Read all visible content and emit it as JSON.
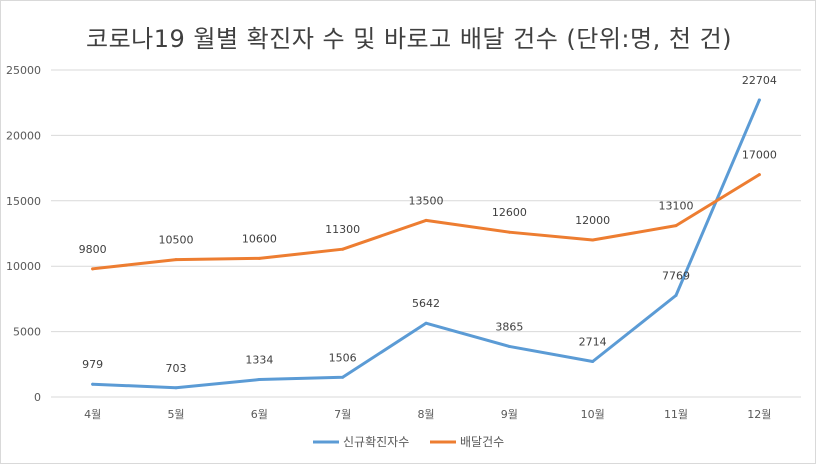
{
  "chart_data": {
    "type": "line",
    "title": "코로나19 월별 확진자 수 및 바로고 배달 건수 (단위:명, 천 건)",
    "categories": [
      "4월",
      "5월",
      "6월",
      "7월",
      "8월",
      "9월",
      "10월",
      "11월",
      "12월"
    ],
    "ylim": [
      0,
      25000
    ],
    "yticks": [
      "0",
      "5000",
      "10000",
      "15000",
      "20000",
      "25000"
    ],
    "grid": true,
    "legend": "bottom",
    "series": [
      {
        "name": "신규확진자수",
        "color": "#5b9bd5",
        "values": [
          979,
          703,
          1334,
          1506,
          5642,
          3865,
          2714,
          7769,
          22704
        ],
        "labels": [
          "979",
          "703",
          "1334",
          "1506",
          "5642",
          "3865",
          "2714",
          "7769",
          "22704"
        ]
      },
      {
        "name": "배달건수",
        "color": "#ed7d31",
        "values": [
          9800,
          10500,
          10600,
          11300,
          13500,
          12600,
          12000,
          13100,
          17000
        ],
        "labels": [
          "9800",
          "10500",
          "10600",
          "11300",
          "13500",
          "12600",
          "12000",
          "13100",
          "17000"
        ]
      }
    ]
  }
}
